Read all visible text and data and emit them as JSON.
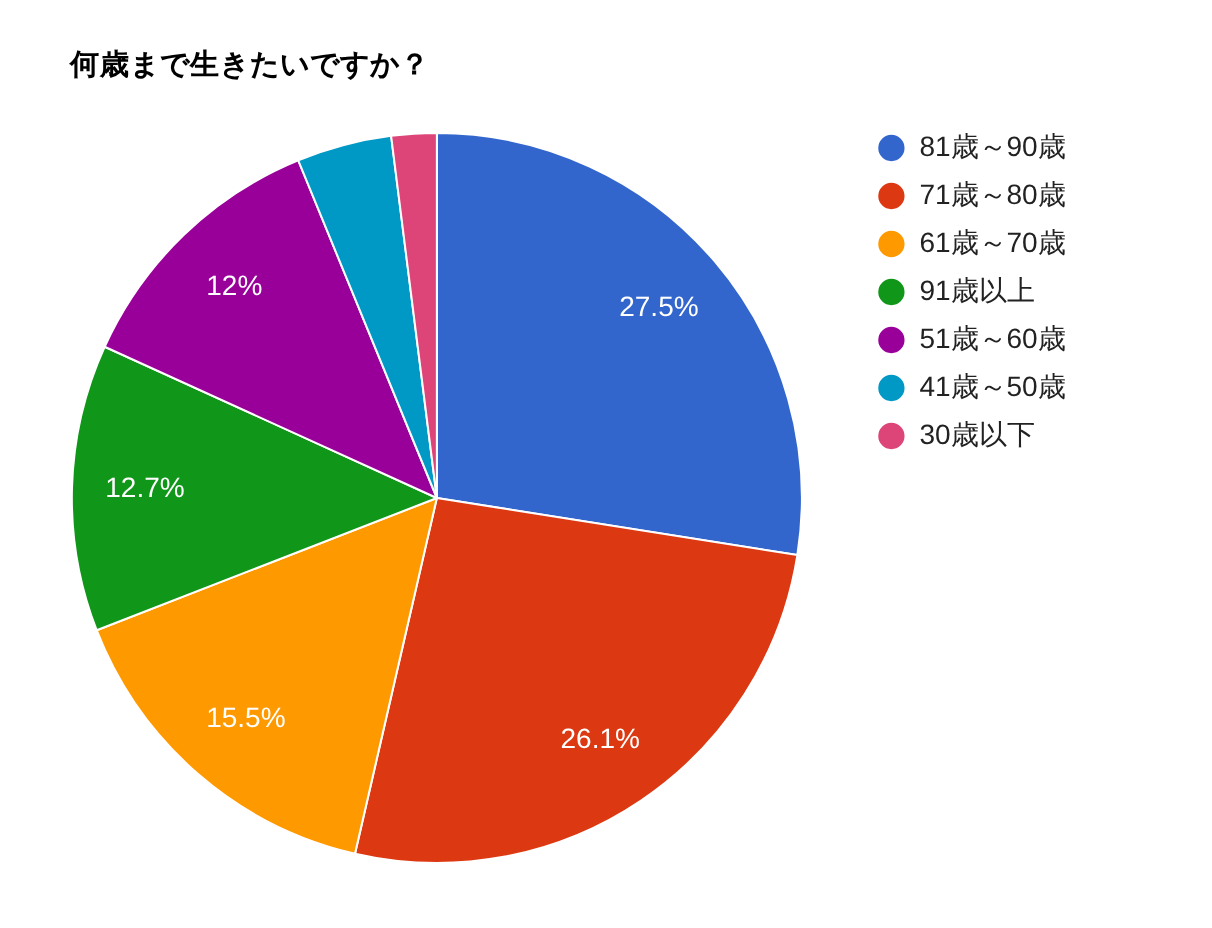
{
  "chart_data": {
    "type": "pie",
    "title": "何歳まで生きたいですか？",
    "categories": [
      "81歳～90歳",
      "71歳～80歳",
      "61歳～70歳",
      "91歳以上",
      "51歳～60歳",
      "41歳～50歳",
      "30歳以下"
    ],
    "values": [
      27.5,
      26.1,
      15.5,
      12.7,
      12,
      4.2,
      2.0
    ],
    "colors": [
      "#3366cc",
      "#dc3912",
      "#ff9900",
      "#109618",
      "#990099",
      "#0099c6",
      "#dd4477"
    ],
    "value_labels": [
      "27.5%",
      "26.1%",
      "15.5%",
      "12.7%",
      "12%",
      null,
      null
    ],
    "legend": "right"
  }
}
